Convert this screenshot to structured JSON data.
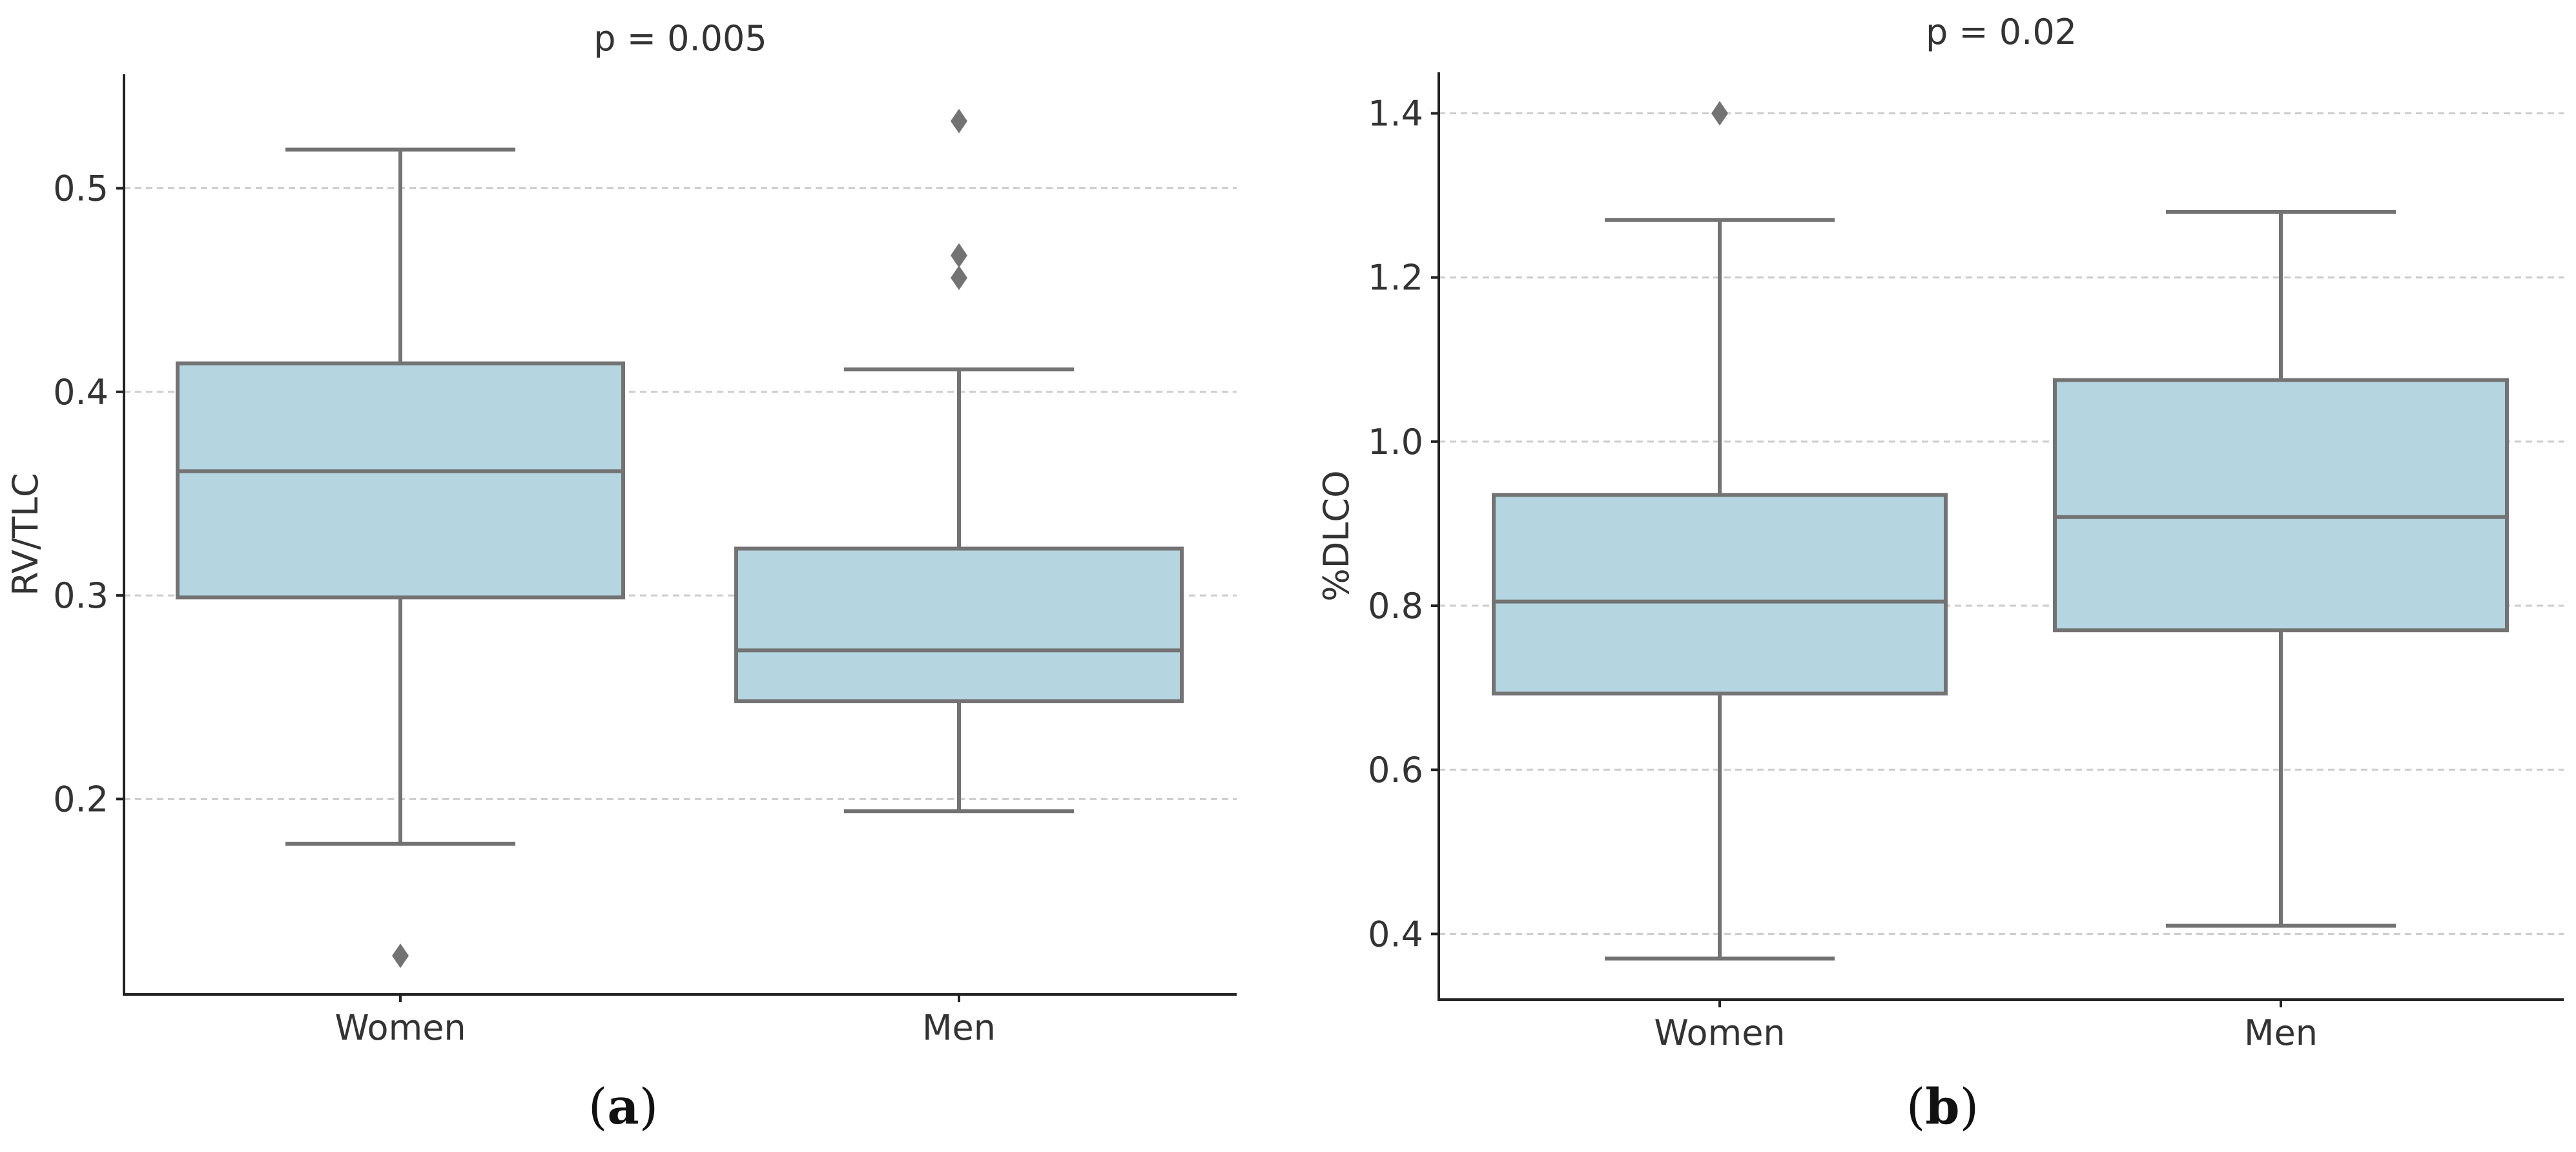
{
  "colors": {
    "box_fill": "#b5d6e0",
    "box_stroke": "#737373",
    "axis": "#222222",
    "grid": "#cccccc",
    "text": "#333333"
  },
  "chart_data": [
    {
      "id": "a",
      "type": "box",
      "title": "p = 0.005",
      "xlabel": "",
      "ylabel": "RV/TLC",
      "categories": [
        "Women",
        "Men"
      ],
      "ylim": [
        0.104,
        0.556
      ],
      "yticks": [
        0.2,
        0.3,
        0.4,
        0.5
      ],
      "ytick_labels": [
        "0.2",
        "0.3",
        "0.4",
        "0.5"
      ],
      "grid": true,
      "caption_letter": "a",
      "boxes": [
        {
          "name": "Women",
          "whisker_low": 0.178,
          "q1": 0.299,
          "median": 0.361,
          "q3": 0.414,
          "whisker_high": 0.519,
          "outliers": [
            0.123
          ]
        },
        {
          "name": "Men",
          "whisker_low": 0.194,
          "q1": 0.248,
          "median": 0.273,
          "q3": 0.323,
          "whisker_high": 0.411,
          "outliers": [
            0.456,
            0.467,
            0.533
          ]
        }
      ]
    },
    {
      "id": "b",
      "type": "box",
      "title": "p = 0.02",
      "xlabel": "",
      "ylabel": "%DLCO",
      "categories": [
        "Women",
        "Men"
      ],
      "ylim": [
        0.32,
        1.45
      ],
      "yticks": [
        0.4,
        0.6,
        0.8,
        1.0,
        1.2,
        1.4
      ],
      "ytick_labels": [
        "0.4",
        "0.6",
        "0.8",
        "1.0",
        "1.2",
        "1.4"
      ],
      "grid": true,
      "caption_letter": "b",
      "boxes": [
        {
          "name": "Women",
          "whisker_low": 0.37,
          "q1": 0.693,
          "median": 0.805,
          "q3": 0.935,
          "whisker_high": 1.27,
          "outliers": [
            1.4
          ]
        },
        {
          "name": "Men",
          "whisker_low": 0.41,
          "q1": 0.77,
          "median": 0.908,
          "q3": 1.075,
          "whisker_high": 1.28,
          "outliers": []
        }
      ]
    }
  ]
}
